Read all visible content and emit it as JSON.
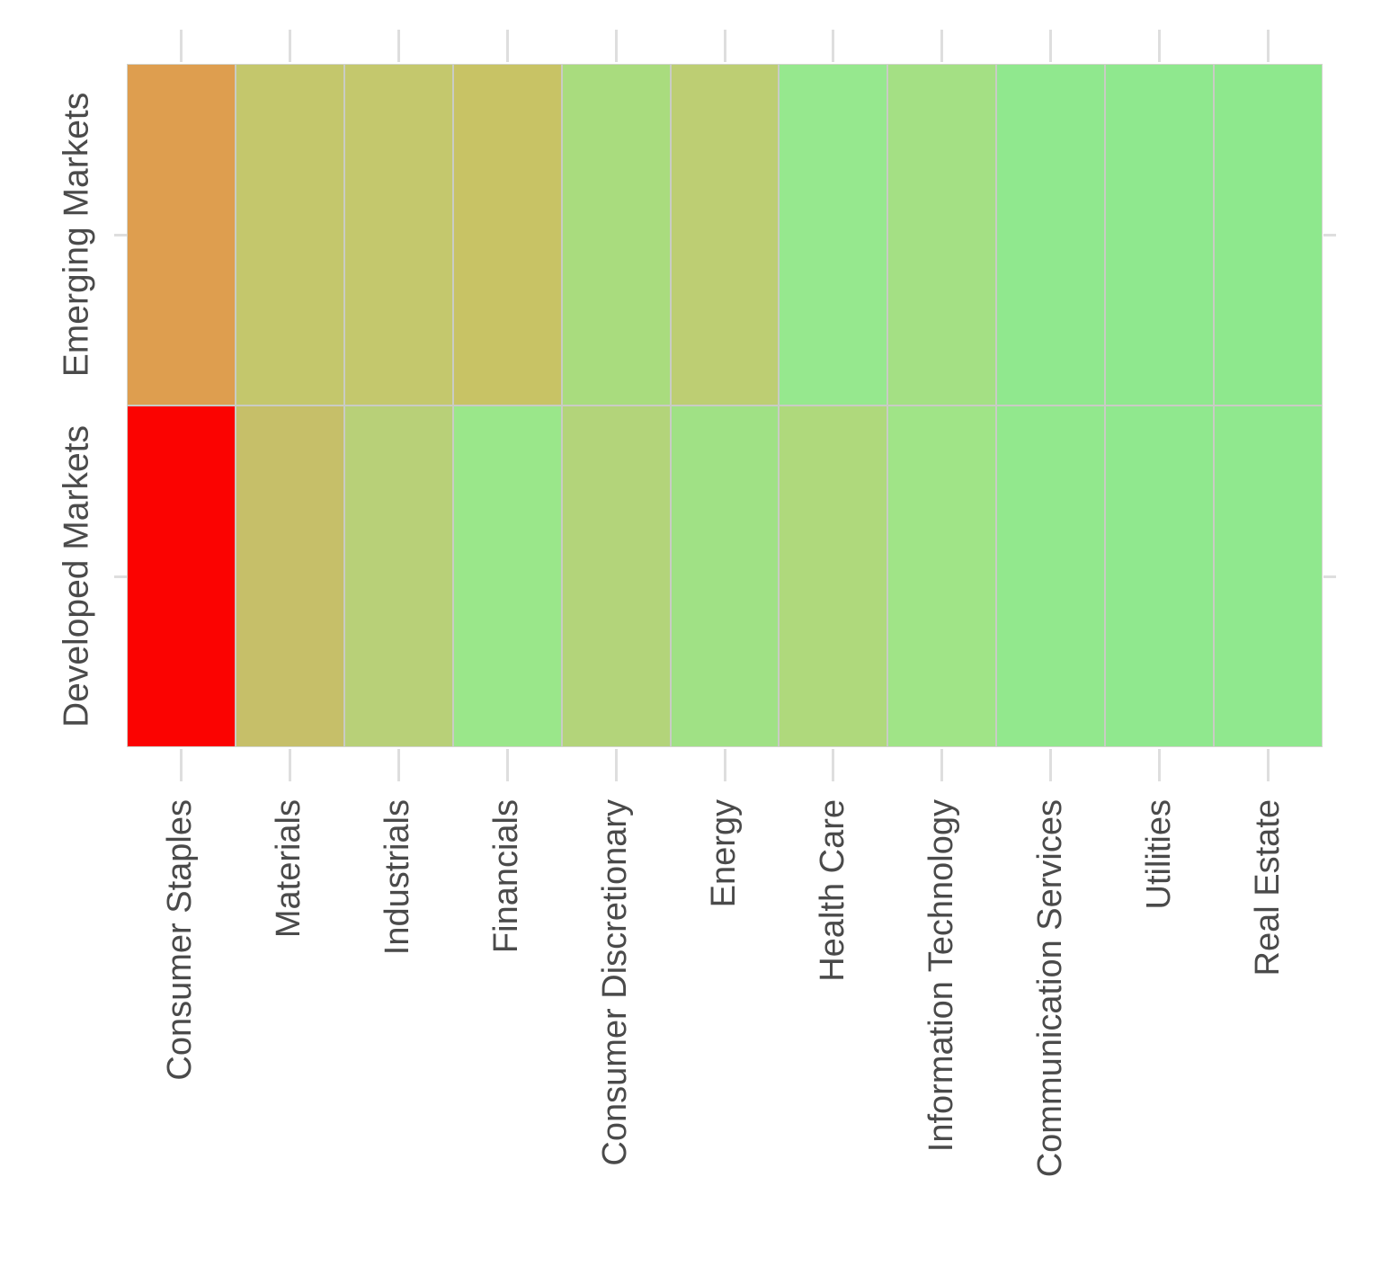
{
  "chart_data": {
    "type": "heatmap",
    "title": "",
    "x_categories": [
      "Consumer Staples",
      "Materials",
      "Industrials",
      "Financials",
      "Consumer Discretionary",
      "Energy",
      "Health Care",
      "Information Technology",
      "Communication Services",
      "Utilities",
      "Real Estate"
    ],
    "y_categories": [
      "Emerging Markets",
      "Developed Markets"
    ],
    "rows": [
      {
        "name": "Emerging Markets",
        "cell_colors": [
          "#DE9E4F",
          "#C4C76C",
          "#C4C86D",
          "#C8C365",
          "#A9DC7E",
          "#BDCE73",
          "#96E88E",
          "#A4E084",
          "#90E88E",
          "#8FE88E",
          "#8EE88D"
        ]
      },
      {
        "name": "Developed Markets",
        "cell_colors": [
          "#FB0301",
          "#C6BF69",
          "#B8D078",
          "#9AE78A",
          "#B3D47A",
          "#A0E185",
          "#AFD97C",
          "#A0E487",
          "#92E88D",
          "#90E88E",
          "#90E88E"
        ]
      }
    ],
    "colormap_hint": "red-yellow-green diverging (red = worst, green = best)",
    "legend": "none",
    "grid": "thin light-gray separators between cells",
    "axis_tick_color": "#DEDEDE",
    "label_color": "#4A4A4A",
    "background_color": "#FFFFFF",
    "cell_gap_color": "#C9CCC4"
  }
}
